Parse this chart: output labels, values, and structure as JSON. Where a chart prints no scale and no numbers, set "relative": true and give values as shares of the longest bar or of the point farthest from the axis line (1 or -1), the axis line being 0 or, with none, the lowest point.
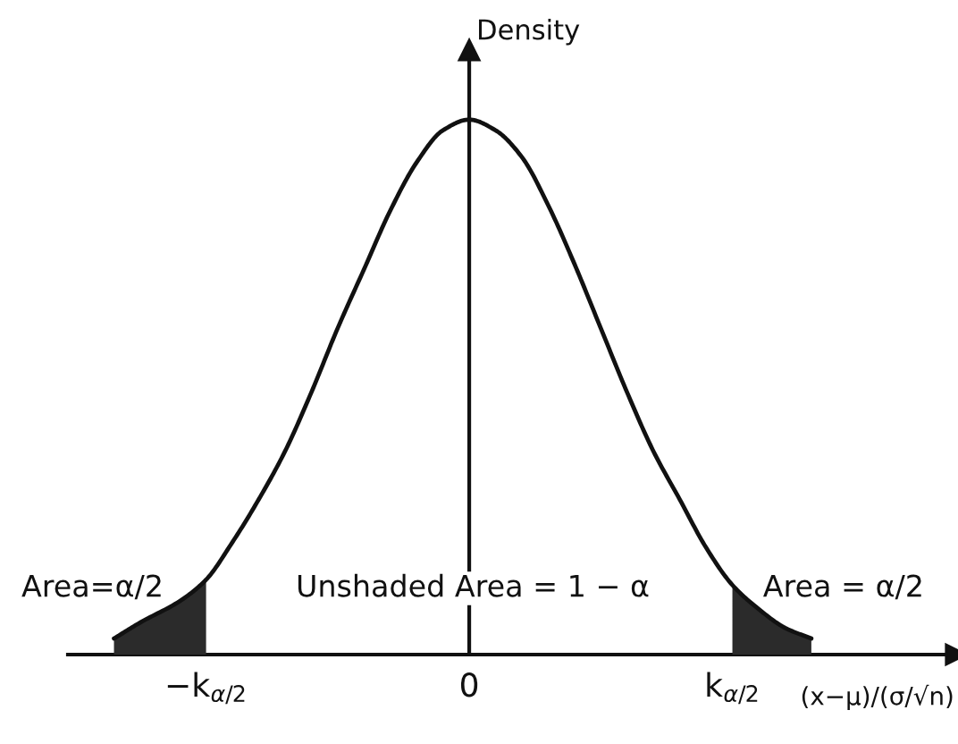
{
  "chart_data": {
    "type": "line",
    "relative": true,
    "ylabel": "Density",
    "xlabel": "(x−μ)/(σ/√n)",
    "xlim": [
      -3.05,
      3.7
    ],
    "xticks": [
      {
        "value": -2,
        "label": "−k$_{α/2}$"
      },
      0,
      {
        "value": 2,
        "label": "k$_{α/2}$"
      }
    ],
    "series": [
      {
        "color": "#111111",
        "x": [
          -2.7,
          -2.5,
          -2.2,
          -2.0,
          -1.8,
          -1.6,
          -1.4,
          -1.2,
          -1.0,
          -0.8,
          -0.6,
          -0.4,
          -0.2,
          0,
          0.2,
          0.4,
          0.6,
          0.8,
          1.0,
          1.2,
          1.4,
          1.6,
          1.8,
          2.0,
          2.2,
          2.4,
          2.6
        ],
        "values": [
          0.03,
          0.06,
          0.1,
          0.14,
          0.21,
          0.29,
          0.38,
          0.49,
          0.61,
          0.72,
          0.83,
          0.92,
          0.98,
          1,
          0.98,
          0.93,
          0.84,
          0.73,
          0.61,
          0.49,
          0.38,
          0.29,
          0.2,
          0.13,
          0.085,
          0.05,
          0.03
        ]
      },
      {
        "type": "area",
        "color": "#2b2b2b",
        "x": [
          -2.7,
          -2.5,
          -2.2,
          -2.0
        ],
        "values": [
          0.03,
          0.06,
          0.1,
          0.14
        ]
      },
      {
        "type": "area",
        "color": "#2b2b2b",
        "x": [
          2.0,
          2.2,
          2.4,
          2.6
        ],
        "values": [
          0.13,
          0.085,
          0.05,
          0.03
        ]
      }
    ],
    "annotations": [
      "Area=α/2",
      "Unshaded Area = 1 − α",
      "Area = α/2"
    ]
  }
}
